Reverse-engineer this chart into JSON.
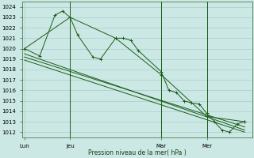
{
  "background_color": "#cce8e4",
  "grid_color": "#aacccc",
  "line_color": "#1a5c1a",
  "ylabel": "Pression niveau de la mer( hPa )",
  "ylim": [
    1011.5,
    1024.5
  ],
  "yticks": [
    1012,
    1013,
    1014,
    1015,
    1016,
    1017,
    1018,
    1019,
    1020,
    1021,
    1022,
    1023,
    1024
  ],
  "xtick_labels": [
    "Lun",
    "Jeu",
    "Mar",
    "Mer"
  ],
  "xtick_positions": [
    0,
    18,
    54,
    72
  ],
  "xlim": [
    -1,
    90
  ],
  "vlines": [
    18,
    54,
    72
  ],
  "series1_x": [
    0,
    6,
    12,
    15,
    18,
    21,
    27,
    30,
    36,
    39,
    42,
    45,
    54,
    57,
    60,
    63,
    66,
    69,
    72,
    75,
    78,
    81,
    84,
    87
  ],
  "series1_y": [
    1020.0,
    1019.3,
    1023.2,
    1023.6,
    1023.0,
    1021.3,
    1019.2,
    1019.0,
    1021.0,
    1021.0,
    1020.8,
    1019.8,
    1017.8,
    1016.0,
    1015.8,
    1015.0,
    1014.8,
    1014.7,
    1013.8,
    1013.0,
    1012.2,
    1012.0,
    1012.8,
    1013.0
  ],
  "series2_x": [
    0,
    18,
    36,
    54,
    72,
    87
  ],
  "series2_y": [
    1020.0,
    1023.0,
    1021.0,
    1017.5,
    1013.5,
    1013.0
  ],
  "trend1_x": [
    0,
    87
  ],
  "trend1_y": [
    1019.5,
    1012.2
  ],
  "trend2_x": [
    0,
    87
  ],
  "trend2_y": [
    1018.9,
    1012.0
  ],
  "trend3_x": [
    0,
    87
  ],
  "trend3_y": [
    1019.2,
    1012.5
  ]
}
